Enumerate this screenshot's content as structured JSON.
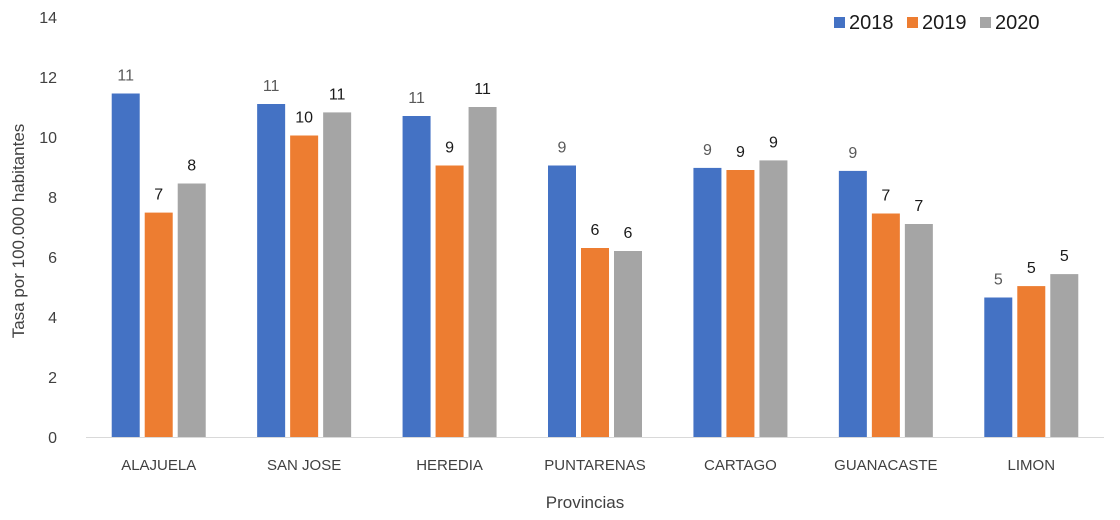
{
  "chart_data": {
    "type": "bar",
    "xlabel": "Provincias",
    "ylabel": "Tasa por 100.000 habitantes",
    "ylim": [
      0,
      14
    ],
    "yticks": [
      0,
      2,
      4,
      6,
      8,
      10,
      12,
      14
    ],
    "grid": false,
    "legend_position": "top-right",
    "categories": [
      "ALAJUELA",
      "SAN JOSE",
      "HEREDIA",
      "PUNTARENAS",
      "CARTAGO",
      "GUANACASTE",
      "LIMON"
    ],
    "series": [
      {
        "name": "2018",
        "color": "#4472C4",
        "label_color": "#595959",
        "values": [
          11.45,
          11.1,
          10.7,
          9.05,
          8.97,
          8.87,
          4.65
        ],
        "labels": [
          "11",
          "11",
          "11",
          "9",
          "9",
          "9",
          "5"
        ]
      },
      {
        "name": "2019",
        "color": "#ED7D31",
        "label_color": "#1a1a1a",
        "values": [
          7.48,
          10.05,
          9.05,
          6.3,
          8.9,
          7.45,
          5.03
        ],
        "labels": [
          "7",
          "10",
          "9",
          "6",
          "9",
          "7",
          "5"
        ]
      },
      {
        "name": "2020",
        "color": "#A5A5A5",
        "label_color": "#1a1a1a",
        "values": [
          8.45,
          10.82,
          11.0,
          6.2,
          9.22,
          7.1,
          5.43
        ],
        "labels": [
          "8",
          "11",
          "11",
          "6",
          "9",
          "7",
          "5"
        ]
      }
    ]
  }
}
